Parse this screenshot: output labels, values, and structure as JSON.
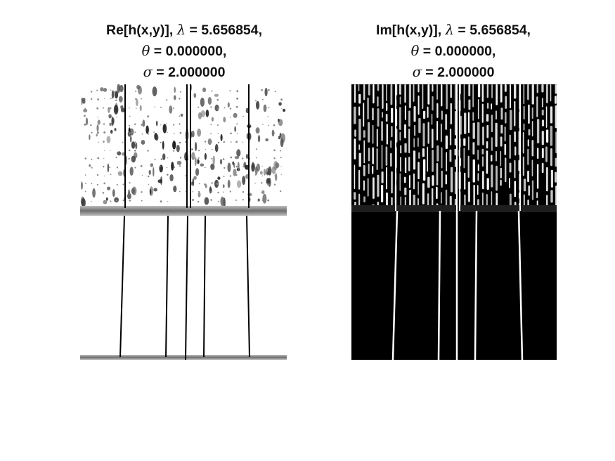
{
  "panels": [
    {
      "id": "real",
      "title": {
        "line1_prefix": "Re[h(x,y)], ",
        "lambda_symbol": "λ",
        "line1_suffix": " = 5.656854,",
        "theta_symbol": "θ",
        "line2_suffix": " = 0.000000,",
        "sigma_symbol": "σ",
        "line3_suffix": " = 2.000000"
      },
      "colors": {
        "background": "#ffffff",
        "foreground": "#000000",
        "band": "#7a7a7a"
      }
    },
    {
      "id": "imag",
      "title": {
        "line1_prefix": "Im[h(x,y)], ",
        "lambda_symbol": "λ",
        "line1_suffix": " = 5.656854,",
        "theta_symbol": "θ",
        "line2_suffix": " = 0.000000,",
        "sigma_symbol": "σ",
        "line3_suffix": " = 2.000000"
      },
      "colors": {
        "background": "#000000",
        "foreground": "#ffffff",
        "band": "#3a3a3a"
      }
    }
  ]
}
